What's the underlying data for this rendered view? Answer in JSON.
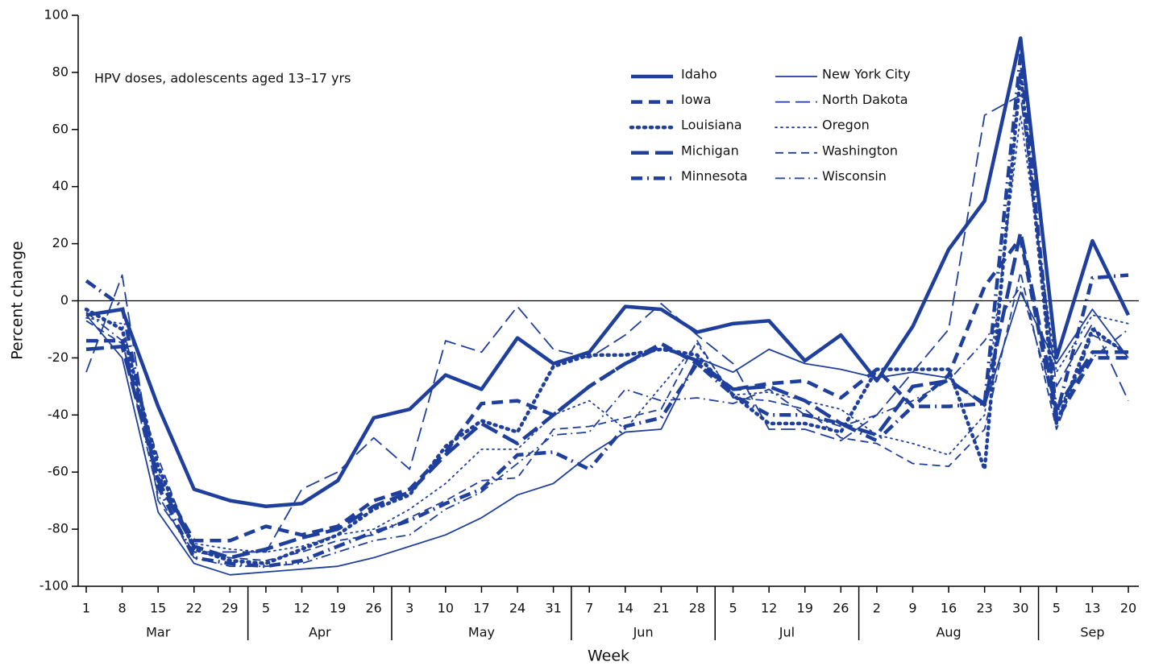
{
  "chart_data": {
    "type": "line",
    "annotation": "HPV doses, adolescents aged 13–17 yrs",
    "x_label": "Week",
    "y_label": "Percent change",
    "groups": [
      {
        "label": "Mar",
        "categories": [
          "1",
          "8",
          "15",
          "22",
          "29"
        ]
      },
      {
        "label": "Apr",
        "categories": [
          "5",
          "12",
          "19",
          "26"
        ]
      },
      {
        "label": "May",
        "categories": [
          "3",
          "10",
          "17",
          "24",
          "31"
        ]
      },
      {
        "label": "Jun",
        "categories": [
          "7",
          "14",
          "21",
          "28"
        ]
      },
      {
        "label": "Jul",
        "categories": [
          "5",
          "12",
          "19",
          "26"
        ]
      },
      {
        "label": "Aug",
        "categories": [
          "2",
          "9",
          "16",
          "23",
          "30"
        ]
      },
      {
        "label": "Sep",
        "categories": [
          "5",
          "13",
          "20"
        ]
      }
    ],
    "ylim": [
      -100,
      100
    ],
    "yticks": [
      -100,
      -80,
      -60,
      -40,
      -20,
      0,
      20,
      40,
      60,
      80,
      100
    ],
    "series": [
      {
        "name": "Idaho",
        "color": "#1f3f9c",
        "weight": "thick",
        "line_style": "solid",
        "values": [
          -5,
          -3,
          -37,
          -66,
          -70,
          -72,
          -71,
          -63,
          -41,
          -38,
          -26,
          -31,
          -13,
          -22,
          -18,
          -2,
          -3,
          -11,
          -8,
          -7,
          -21,
          -12,
          -28,
          -9,
          18,
          35,
          92,
          -20,
          21,
          -5
        ]
      },
      {
        "name": "Iowa",
        "color": "#1f3f9c",
        "weight": "thick",
        "line_style": "dash",
        "values": [
          -14,
          -14,
          -62,
          -84,
          -84,
          -79,
          -82,
          -79,
          -70,
          -66,
          -53,
          -36,
          -35,
          -40,
          -30,
          -22,
          -15,
          -22,
          -31,
          -29,
          -28,
          -34,
          -24,
          -37,
          -26,
          5,
          22,
          -42,
          -20,
          -20
        ]
      },
      {
        "name": "Louisiana",
        "color": "#1f3f9c",
        "weight": "thick",
        "line_style": "dot",
        "values": [
          -3,
          -10,
          -58,
          -87,
          -91,
          -92,
          -87,
          -82,
          -73,
          -68,
          -51,
          -42,
          -46,
          -23,
          -19,
          -19,
          -17,
          -19,
          -33,
          -43,
          -43,
          -46,
          -24,
          -24,
          -24,
          -59,
          80,
          -43,
          -10,
          -19
        ]
      },
      {
        "name": "Michigan",
        "color": "#1f3f9c",
        "weight": "thick",
        "line_style": "longdash",
        "values": [
          -17,
          -16,
          -63,
          -86,
          -90,
          -87,
          -83,
          -80,
          -72,
          -67,
          -54,
          -43,
          -50,
          -40,
          -30,
          -22,
          -16,
          -21,
          -31,
          -30,
          -35,
          -43,
          -47,
          -30,
          -28,
          -36,
          24,
          -38,
          -18,
          -18
        ]
      },
      {
        "name": "Minnesota",
        "color": "#1f3f9c",
        "weight": "thick",
        "line_style": "dashdot",
        "values": [
          7,
          -2,
          -65,
          -90,
          -92,
          -93,
          -91,
          -86,
          -81,
          -77,
          -71,
          -66,
          -54,
          -53,
          -59,
          -44,
          -41,
          -22,
          -33,
          -40,
          -40,
          -43,
          -49,
          -37,
          -37,
          -36,
          86,
          -40,
          8,
          9
        ]
      },
      {
        "name": "New York City",
        "color": "#1f3f9c",
        "weight": "thin",
        "line_style": "solid",
        "values": [
          -5,
          -20,
          -74,
          -92,
          -96,
          -95,
          -94,
          -93,
          -90,
          -86,
          -82,
          -76,
          -68,
          -64,
          -54,
          -46,
          -45,
          -20,
          -25,
          -17,
          -22,
          -24,
          -27,
          -25,
          -27,
          -37,
          3,
          -22,
          -3,
          -20
        ]
      },
      {
        "name": "North Dakota",
        "color": "#1f3f9c",
        "weight": "thin",
        "line_style": "longdash",
        "values": [
          -25,
          9,
          -70,
          -88,
          -88,
          -88,
          -66,
          -60,
          -48,
          -59,
          -14,
          -18,
          -2,
          -17,
          -20,
          -12,
          -1,
          -12,
          -22,
          -45,
          -45,
          -49,
          -40,
          -25,
          -10,
          65,
          72,
          -30,
          -8,
          -35
        ]
      },
      {
        "name": "Oregon",
        "color": "#1f3f9c",
        "weight": "thin",
        "line_style": "dot",
        "values": [
          -6,
          -8,
          -60,
          -85,
          -87,
          -88,
          -86,
          -82,
          -80,
          -73,
          -64,
          -52,
          -52,
          -40,
          -35,
          -45,
          -30,
          -15,
          -33,
          -32,
          -35,
          -38,
          -47,
          -50,
          -54,
          -40,
          65,
          -25,
          -5,
          -8
        ]
      },
      {
        "name": "Washington",
        "color": "#1f3f9c",
        "weight": "thin",
        "line_style": "dash",
        "values": [
          -7,
          -15,
          -55,
          -88,
          -90,
          -91,
          -88,
          -84,
          -82,
          -76,
          -70,
          -63,
          -62,
          -45,
          -44,
          -41,
          -38,
          -14,
          -34,
          -35,
          -38,
          -48,
          -50,
          -57,
          -58,
          -45,
          10,
          -45,
          -12,
          -18
        ]
      },
      {
        "name": "Wisconsin",
        "color": "#1f3f9c",
        "weight": "thin",
        "line_style": "dashdot",
        "values": [
          -4,
          -14,
          -68,
          -90,
          -93,
          -93,
          -92,
          -88,
          -84,
          -82,
          -73,
          -67,
          -57,
          -47,
          -46,
          -31,
          -35,
          -34,
          -36,
          -31,
          -40,
          -44,
          -40,
          -35,
          -28,
          -14,
          5,
          -38,
          -20,
          -10
        ]
      }
    ]
  }
}
